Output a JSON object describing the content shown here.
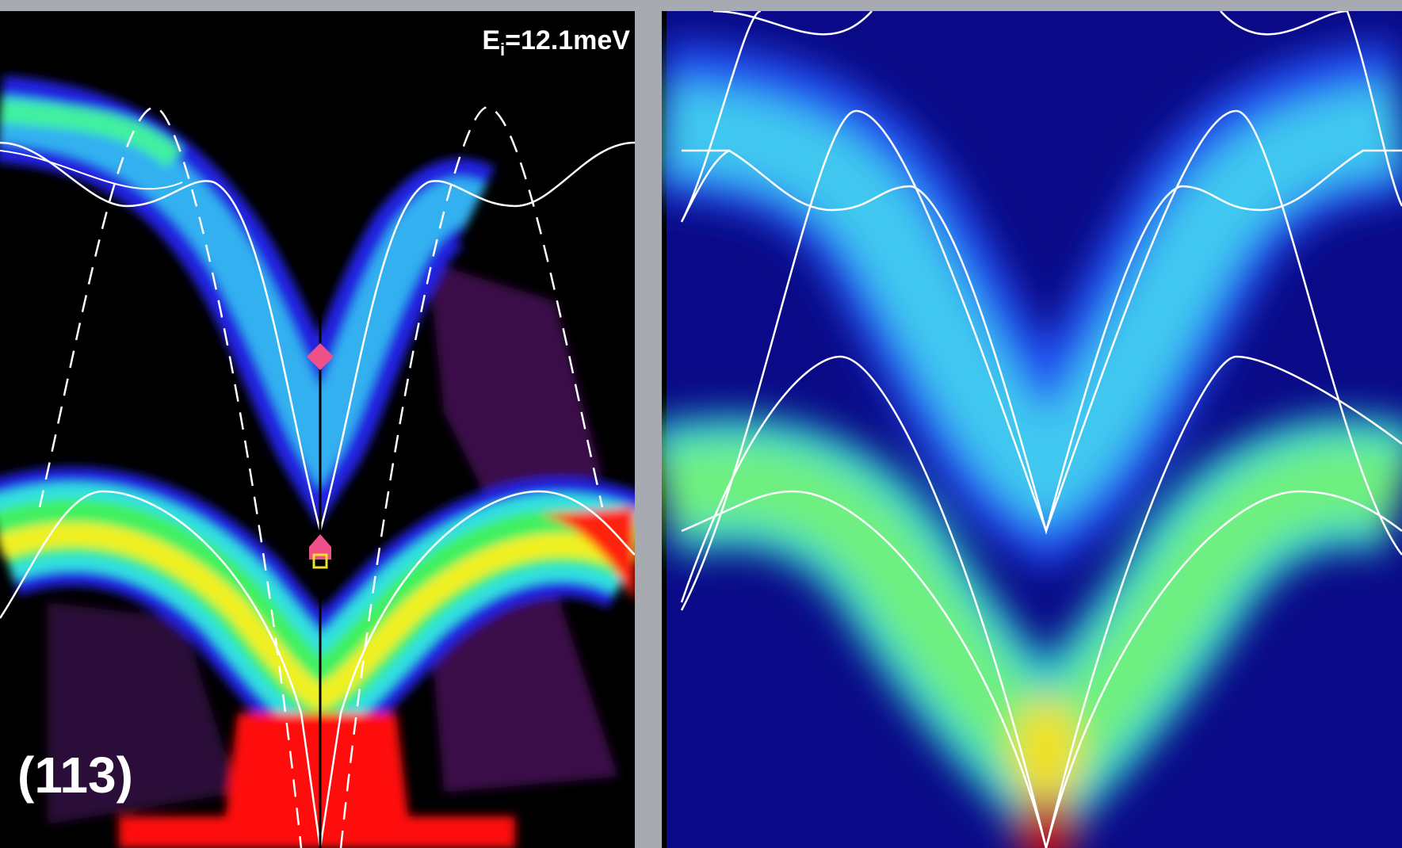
{
  "panels": [
    {
      "energy_label": {
        "symbol": "E",
        "subscript": "i",
        "value": "=12.1meV"
      },
      "index_label": "(113)"
    }
  ]
}
